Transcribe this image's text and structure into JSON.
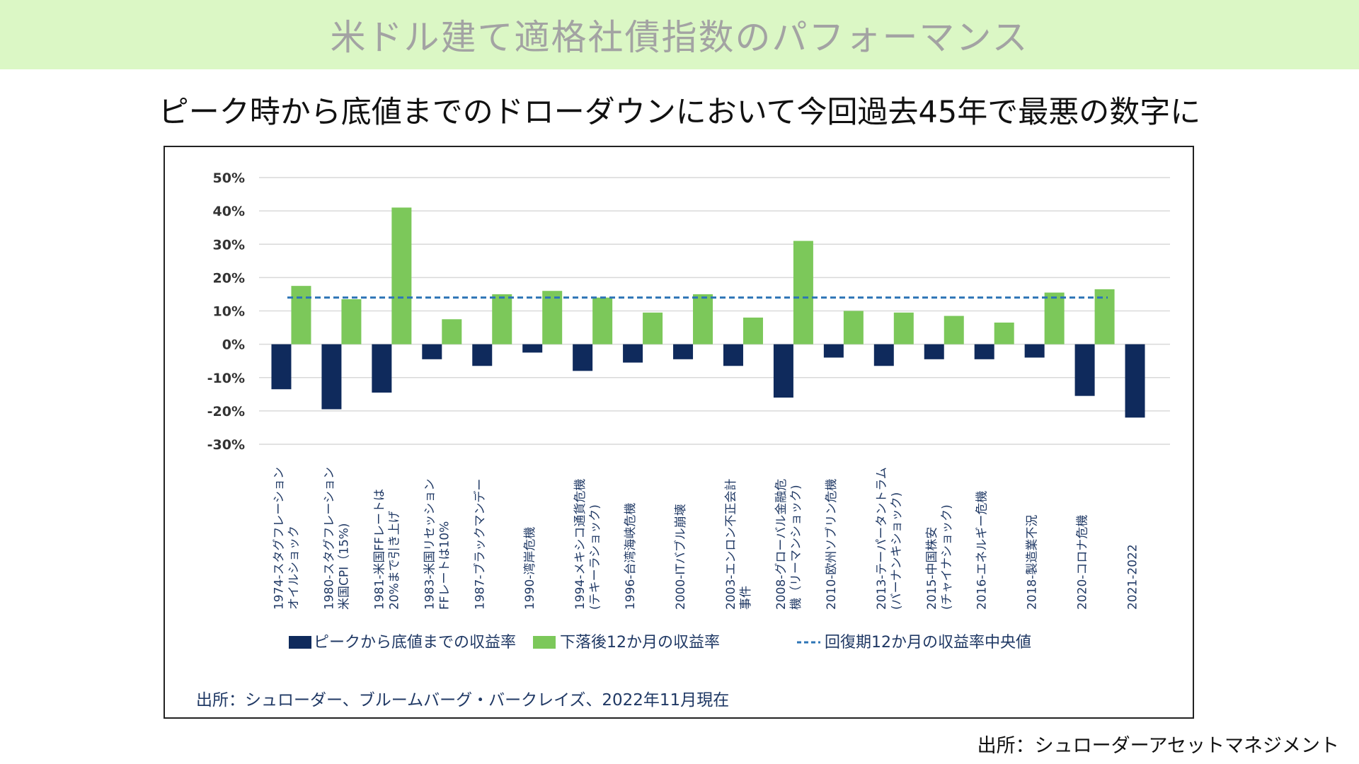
{
  "page": {
    "title": "米ドル建て適格社債指数のパフォーマンス",
    "subtitle": "ピーク時から底値までのドローダウンにおいて今回過去45年で最悪の数字に",
    "source_inner": "出所：シュローダー、ブルームバーグ・バークレイズ、2022年11月現在",
    "source_outer": "出所：シュローダーアセットマネジメント"
  },
  "colors": {
    "title_band": "#dbf7c5",
    "drawdown": "#0f2a5c",
    "recovery": "#7cc85a",
    "median_line": "#2e75b6"
  },
  "chart_data": {
    "type": "bar",
    "categories": [
      [
        "1974-スタグフレーション",
        "オイルショック"
      ],
      [
        "1980-スタグフレーション",
        "米国CPI（15%)"
      ],
      [
        "1981-米国FFレートは",
        "20%まで引き上げ"
      ],
      [
        "1983-米国リセッション",
        "FFレートは10%"
      ],
      [
        "1987-ブラックマンデー"
      ],
      [
        "1990-湾岸危機"
      ],
      [
        "1994-メキシコ通貨危機",
        "(テキーラショック)"
      ],
      [
        "1996-台湾海峡危機"
      ],
      [
        "2000-ITバブル崩壊"
      ],
      [
        "2003-エンロン不正会計",
        "事件"
      ],
      [
        "2008-グローバル金融危",
        "機（リーマンショック)"
      ],
      [
        "2010-欧州ソブリン危機"
      ],
      [
        "2013-テーパータントラム",
        "(バーナンキショック)"
      ],
      [
        "2015-中国株安",
        "(チャイナショック)"
      ],
      [
        "2016-エネルギー危機"
      ],
      [
        "2018-製造業不況"
      ],
      [
        "2020-コロナ危機"
      ],
      [
        "2021-2022"
      ]
    ],
    "series": [
      {
        "name": "ピークから底値までの収益率",
        "values": [
          -13.5,
          -19.5,
          -14.5,
          -4.5,
          -6.5,
          -2.5,
          -8,
          -5.5,
          -4.5,
          -6.5,
          -16,
          -4,
          -6.5,
          -4.5,
          -4.5,
          -4,
          -15.5,
          -22
        ]
      },
      {
        "name": "下落後12か月の収益率",
        "values": [
          17.5,
          13.5,
          41,
          7.5,
          15,
          16,
          14,
          9.5,
          15,
          8,
          31,
          10,
          9.5,
          8.5,
          6.5,
          15.5,
          16.5,
          null
        ]
      }
    ],
    "median_line": {
      "name": "回復期12か月の収益率中央値",
      "value": 14
    },
    "y_ticks": [
      "50%",
      "40%",
      "30%",
      "20%",
      "10%",
      "0%",
      "-10%",
      "-20%",
      "-30%"
    ],
    "ylim": [
      -30,
      50
    ],
    "grid": true,
    "legend_position": "bottom"
  }
}
